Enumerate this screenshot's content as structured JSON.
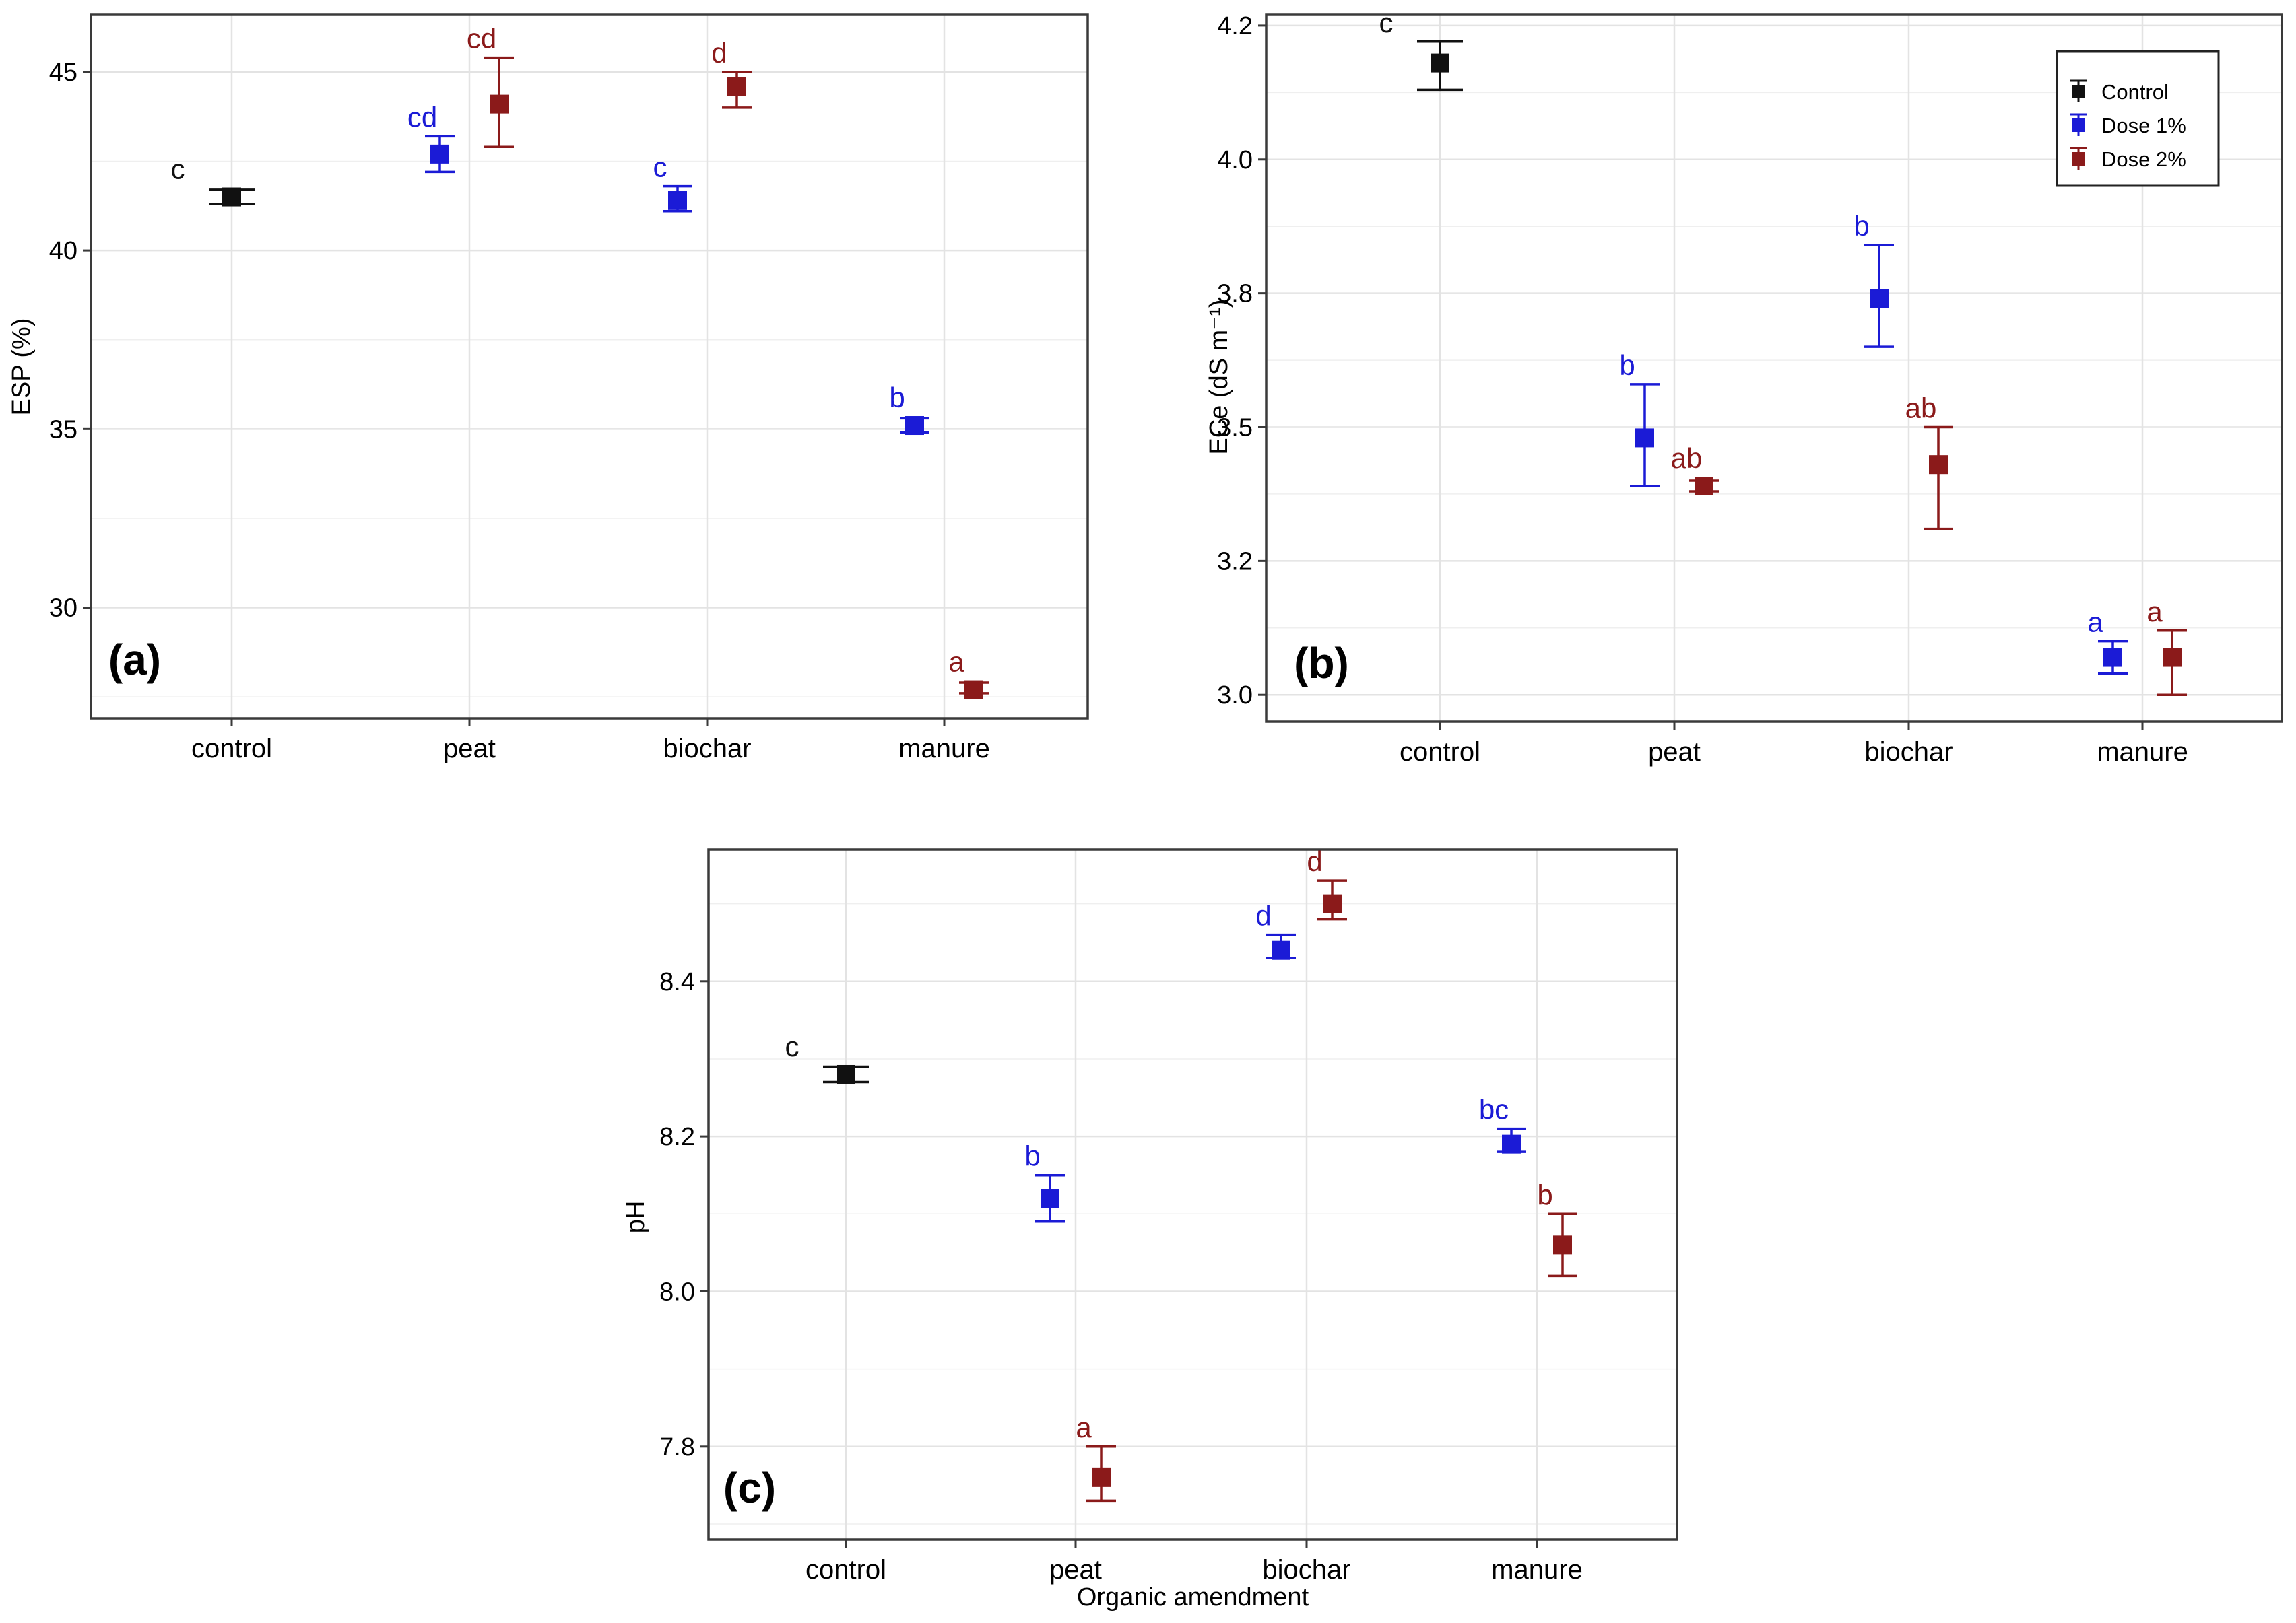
{
  "colors": {
    "control": "#111111",
    "dose1": "#1b1bd6",
    "dose2": "#8b1a1a"
  },
  "legend": {
    "entries": [
      {
        "key": "control",
        "label": "Control"
      },
      {
        "key": "dose1",
        "label": "Dose 1%"
      },
      {
        "key": "dose2",
        "label": "Dose 2%"
      }
    ]
  },
  "chart_data": [
    {
      "id": "a",
      "panel_label": "(a)",
      "type": "scatter",
      "ylabel": "ESP (%)",
      "xlabel": "",
      "categories": [
        "control",
        "peat",
        "biochar",
        "manure"
      ],
      "ylim": [
        26.9,
        46.6
      ],
      "yticks": [
        30,
        35,
        40,
        45
      ],
      "ytick_labels": [
        "30",
        "35",
        "40",
        "45"
      ],
      "grid": true,
      "points": [
        {
          "cat": 0,
          "group": "control",
          "y": 41.5,
          "err": [
            41.3,
            41.7
          ],
          "sig": "c"
        },
        {
          "cat": 1,
          "group": "dose1",
          "y": 42.7,
          "err": [
            42.2,
            43.2
          ],
          "sig": "cd"
        },
        {
          "cat": 1,
          "group": "dose2",
          "y": 44.1,
          "err": [
            42.9,
            45.4
          ],
          "sig": "cd"
        },
        {
          "cat": 2,
          "group": "dose1",
          "y": 41.4,
          "err": [
            41.1,
            41.8
          ],
          "sig": "c"
        },
        {
          "cat": 2,
          "group": "dose2",
          "y": 44.6,
          "err": [
            44.0,
            45.0
          ],
          "sig": "d"
        },
        {
          "cat": 3,
          "group": "dose1",
          "y": 35.1,
          "err": [
            34.9,
            35.3
          ],
          "sig": "b"
        },
        {
          "cat": 3,
          "group": "dose2",
          "y": 27.7,
          "err": [
            27.6,
            27.9
          ],
          "sig": "a"
        }
      ]
    },
    {
      "id": "b",
      "panel_label": "(b)",
      "type": "scatter",
      "ylabel": "ECe (dS m⁻¹)",
      "xlabel": "",
      "categories": [
        "control",
        "peat",
        "biochar",
        "manure"
      ],
      "ylim": [
        2.95,
        4.27
      ],
      "yticks": [
        3.0,
        3.25,
        3.5,
        3.75,
        4.0,
        4.25
      ],
      "ytick_labels": [
        "3.0",
        "3.2",
        "3.5",
        "3.8",
        "4.0",
        "4.2"
      ],
      "grid": true,
      "legend_position": "top-right",
      "points": [
        {
          "cat": 0,
          "group": "control",
          "y": 4.18,
          "err": [
            4.13,
            4.22
          ],
          "sig": "c"
        },
        {
          "cat": 1,
          "group": "dose1",
          "y": 3.48,
          "err": [
            3.39,
            3.58
          ],
          "sig": "b"
        },
        {
          "cat": 1,
          "group": "dose2",
          "y": 3.39,
          "err": [
            3.38,
            3.4
          ],
          "sig": "ab"
        },
        {
          "cat": 2,
          "group": "dose1",
          "y": 3.74,
          "err": [
            3.65,
            3.84
          ],
          "sig": "b"
        },
        {
          "cat": 2,
          "group": "dose2",
          "y": 3.43,
          "err": [
            3.31,
            3.5
          ],
          "sig": "ab"
        },
        {
          "cat": 3,
          "group": "dose1",
          "y": 3.07,
          "err": [
            3.04,
            3.1
          ],
          "sig": "a"
        },
        {
          "cat": 3,
          "group": "dose2",
          "y": 3.07,
          "err": [
            3.0,
            3.12
          ],
          "sig": "a"
        }
      ]
    },
    {
      "id": "c",
      "panel_label": "(c)",
      "type": "scatter",
      "ylabel": "pH",
      "xlabel": "Organic amendment",
      "categories": [
        "control",
        "peat",
        "biochar",
        "manure"
      ],
      "ylim": [
        7.68,
        8.57
      ],
      "yticks": [
        7.8,
        8.0,
        8.2,
        8.4
      ],
      "ytick_labels": [
        "7.8",
        "8.0",
        "8.2",
        "8.4"
      ],
      "grid": true,
      "points": [
        {
          "cat": 0,
          "group": "control",
          "y": 8.28,
          "err": [
            8.27,
            8.29
          ],
          "sig": "c"
        },
        {
          "cat": 1,
          "group": "dose1",
          "y": 8.12,
          "err": [
            8.09,
            8.15
          ],
          "sig": "b"
        },
        {
          "cat": 1,
          "group": "dose2",
          "y": 7.76,
          "err": [
            7.73,
            7.8
          ],
          "sig": "a"
        },
        {
          "cat": 2,
          "group": "dose1",
          "y": 8.44,
          "err": [
            8.43,
            8.46
          ],
          "sig": "d"
        },
        {
          "cat": 2,
          "group": "dose2",
          "y": 8.5,
          "err": [
            8.48,
            8.53
          ],
          "sig": "d"
        },
        {
          "cat": 3,
          "group": "dose1",
          "y": 8.19,
          "err": [
            8.18,
            8.21
          ],
          "sig": "bc"
        },
        {
          "cat": 3,
          "group": "dose2",
          "y": 8.06,
          "err": [
            8.02,
            8.1
          ],
          "sig": "b"
        }
      ]
    }
  ]
}
